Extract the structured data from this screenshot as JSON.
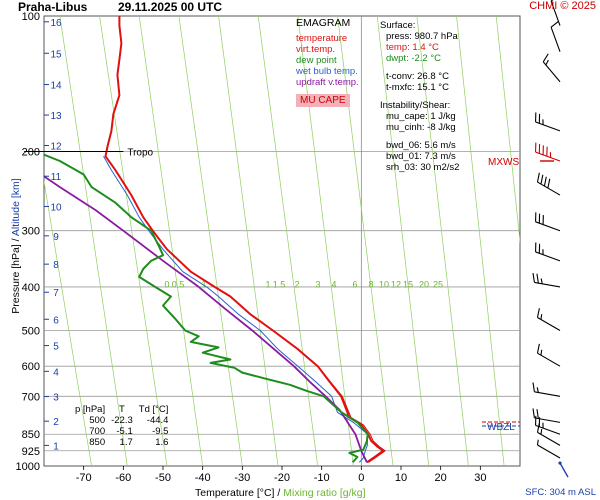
{
  "header": {
    "station": "Praha-Libus",
    "datetime": "29.11.2025 00 UTC",
    "credit": "CHMI © 2025"
  },
  "legend": {
    "title": "EMAGRAM",
    "items": [
      {
        "label": "temperature",
        "color": "#e01010"
      },
      {
        "label": "virt.temp.",
        "color": "#e01010"
      },
      {
        "label": "dew point",
        "color": "#1e8c1e"
      },
      {
        "label": "wet bulb temp.",
        "color": "#2b5fd0"
      },
      {
        "label": "updraft v.temp.",
        "color": "#8a1aa0"
      }
    ],
    "badge": "MU CAPE"
  },
  "info": {
    "surface_title": "Surface:",
    "press": "press: 980.7 hPa",
    "temp": "temp: 1.4 °C",
    "dwpt": "dwpt: -2.2 °C",
    "tconv": "t-conv: 26.8 °C",
    "tmxfc": "t-mxfc: 15.1 °C",
    "instability_title": "Instability/Shear:",
    "mu_cape": "mu_cape: 1 J/kg",
    "mu_cinh": "mu_cinh: -8 J/kg",
    "bwd_06": "bwd_06: 5.6 m/s",
    "bwd_01": "bwd_01: 7.3 m/s",
    "srh_03": "srh_03: 30 m2/s2"
  },
  "level_table": {
    "headers": [
      "p [hPa]",
      "T",
      "Td [°C]"
    ],
    "rows": [
      [
        "500",
        "-22.3",
        "-44.4"
      ],
      [
        "700",
        "-5.1",
        "-9.5"
      ],
      [
        "850",
        "1.7",
        "1.6"
      ]
    ]
  },
  "axes": {
    "xlabel_a": "Temperature [°C]",
    "xlabel_sep": " / ",
    "xlabel_b": "Mixing ratio [g/kg]",
    "ylabel_a": "Pressure [hPa]",
    "ylabel_sep": " / ",
    "ylabel_b": "Altitude [km]",
    "sfc": "SFC: 304 m ASL"
  },
  "annotations": {
    "tropo": "Tropo",
    "mxws": "MXWS",
    "wbzl": "WBZL"
  },
  "chart_data": {
    "type": "line",
    "title": "EMAGRAM",
    "xlabel": "Temperature [°C] / Mixing ratio [g/kg]",
    "ylabel": "Pressure [hPa] / Altitude [km]",
    "xlim": [
      -80,
      40
    ],
    "ylim_hpa": [
      1000,
      100
    ],
    "log_y": true,
    "grid": true,
    "x_ticks": [
      -70,
      -60,
      -50,
      -40,
      -30,
      -20,
      -10,
      0,
      10,
      20,
      30
    ],
    "pressure_ticks": [
      100,
      200,
      300,
      400,
      500,
      600,
      700,
      850,
      925,
      1000
    ],
    "altitude_ticks_km": [
      {
        "km": "1",
        "p": 900
      },
      {
        "km": "2",
        "p": 795
      },
      {
        "km": "3",
        "p": 701
      },
      {
        "km": "4",
        "p": 616
      },
      {
        "km": "5",
        "p": 540
      },
      {
        "km": "6",
        "p": 472
      },
      {
        "km": "7",
        "p": 411
      },
      {
        "km": "8",
        "p": 356
      },
      {
        "km": "9",
        "p": 308
      },
      {
        "km": "10",
        "p": 265
      },
      {
        "km": "11",
        "p": 227
      },
      {
        "km": "12",
        "p": 194
      },
      {
        "km": "13",
        "p": 166
      },
      {
        "km": "14",
        "p": 142
      },
      {
        "km": "15",
        "p": 121
      },
      {
        "km": "16",
        "p": 103
      }
    ],
    "mixing_ratio_labels": [
      "0",
      "0.5",
      "1",
      "1.5",
      "2",
      "3",
      "4",
      "6",
      "8",
      "10",
      "12",
      "15",
      "20",
      "25"
    ],
    "mixing_ratio_lines": [
      {
        "label": "0",
        "x_at_1000": -68,
        "x_at_100": -87
      },
      {
        "label": "0.5",
        "x_at_1000": -59,
        "x_at_100": -76
      },
      {
        "label": "1",
        "x_at_1000": -49,
        "x_at_100": -66
      },
      {
        "label": "1.5",
        "x_at_1000": -40,
        "x_at_100": -56
      },
      {
        "label": "2",
        "x_at_1000": -30,
        "x_at_100": -46
      },
      {
        "label": "3",
        "x_at_1000": -21,
        "x_at_100": -36
      },
      {
        "label": "4",
        "x_at_1000": -11,
        "x_at_100": -26
      },
      {
        "label": "6",
        "x_at_1000": -2,
        "x_at_100": -16
      },
      {
        "label": "8",
        "x_at_1000": 8,
        "x_at_100": -6
      },
      {
        "label": "10",
        "x_at_1000": 17,
        "x_at_100": 4
      },
      {
        "label": "12",
        "x_at_1000": 27,
        "x_at_100": 14
      },
      {
        "label": "15",
        "x_at_1000": 36,
        "x_at_100": 24
      },
      {
        "label": "20",
        "x_at_1000": 46,
        "x_at_100": 34
      },
      {
        "label": "25",
        "x_at_1000": 55,
        "x_at_100": 44
      }
    ],
    "tropopause_hpa": 200,
    "series": [
      {
        "name": "temperature",
        "color": "#e01010",
        "points": [
          [
            1.4,
            981
          ],
          [
            3,
            960
          ],
          [
            5.5,
            925
          ],
          [
            4,
            905
          ],
          [
            2.5,
            880
          ],
          [
            1.7,
            850
          ],
          [
            0,
            810
          ],
          [
            -3,
            780
          ],
          [
            -5.1,
            700
          ],
          [
            -8,
            650
          ],
          [
            -11,
            600
          ],
          [
            -16,
            550
          ],
          [
            -22.3,
            500
          ],
          [
            -28,
            460
          ],
          [
            -33,
            420
          ],
          [
            -37,
            400
          ],
          [
            -43,
            370
          ],
          [
            -49,
            330
          ],
          [
            -52,
            305
          ],
          [
            -55,
            280
          ],
          [
            -58,
            250
          ],
          [
            -62,
            220
          ],
          [
            -64.5,
            205
          ],
          [
            -64,
            195
          ],
          [
            -63,
            180
          ],
          [
            -62.5,
            165
          ],
          [
            -61,
            150
          ],
          [
            -61.5,
            135
          ],
          [
            -61,
            125
          ],
          [
            -60.5,
            115
          ],
          [
            -61,
            105
          ],
          [
            -61,
            100
          ]
        ]
      },
      {
        "name": "virt.temp.",
        "color": "#e01010",
        "points": [
          [
            1.8,
            981
          ],
          [
            3.5,
            960
          ],
          [
            6,
            925
          ],
          [
            4.5,
            905
          ],
          [
            3,
            880
          ],
          [
            2.2,
            850
          ],
          [
            0.5,
            810
          ],
          [
            -2.6,
            780
          ],
          [
            -4.8,
            700
          ],
          [
            -7.8,
            650
          ],
          [
            -10.9,
            600
          ],
          [
            -15.9,
            550
          ],
          [
            -22.2,
            500
          ],
          [
            -28,
            460
          ],
          [
            -33,
            420
          ],
          [
            -37,
            400
          ],
          [
            -43,
            370
          ],
          [
            -49,
            330
          ],
          [
            -52,
            305
          ],
          [
            -55,
            280
          ],
          [
            -58,
            250
          ],
          [
            -62,
            220
          ],
          [
            -64.5,
            205
          ],
          [
            -64,
            195
          ],
          [
            -63,
            180
          ],
          [
            -62.5,
            165
          ],
          [
            -61,
            150
          ],
          [
            -61.5,
            135
          ],
          [
            -61,
            125
          ],
          [
            -60.5,
            115
          ],
          [
            -61,
            105
          ],
          [
            -61,
            100
          ]
        ]
      },
      {
        "name": "dew point",
        "color": "#1e8c1e",
        "points": [
          [
            -2.2,
            981
          ],
          [
            -1,
            955
          ],
          [
            -3,
            935
          ],
          [
            0.5,
            920
          ],
          [
            1.4,
            880
          ],
          [
            1.6,
            850
          ],
          [
            -1,
            800
          ],
          [
            -5,
            760
          ],
          [
            -9.5,
            700
          ],
          [
            -14,
            680
          ],
          [
            -18,
            660
          ],
          [
            -24,
            640
          ],
          [
            -30,
            620
          ],
          [
            -32,
            605
          ],
          [
            -38,
            590
          ],
          [
            -33,
            580
          ],
          [
            -40,
            560
          ],
          [
            -36,
            545
          ],
          [
            -43,
            530
          ],
          [
            -41,
            515
          ],
          [
            -44.4,
            500
          ],
          [
            -47,
            470
          ],
          [
            -50,
            440
          ],
          [
            -48,
            420
          ],
          [
            -52,
            400
          ],
          [
            -56,
            380
          ],
          [
            -55,
            365
          ],
          [
            -53,
            350
          ],
          [
            -50,
            340
          ],
          [
            -51,
            325
          ],
          [
            -53,
            300
          ],
          [
            -58,
            280
          ],
          [
            -62,
            260
          ],
          [
            -68,
            240
          ],
          [
            -70,
            225
          ],
          [
            -76,
            210
          ],
          [
            -82,
            200
          ],
          [
            -84,
            190
          ]
        ]
      },
      {
        "name": "wet bulb temp.",
        "color": "#2b5fd0",
        "points": [
          [
            -0.5,
            981
          ],
          [
            0.5,
            960
          ],
          [
            1,
            925
          ],
          [
            1.5,
            900
          ],
          [
            1.6,
            850
          ],
          [
            -2,
            800
          ],
          [
            -6,
            760
          ],
          [
            -7.5,
            700
          ],
          [
            -11.5,
            650
          ],
          [
            -16,
            600
          ],
          [
            -21,
            550
          ],
          [
            -25.5,
            500
          ],
          [
            -31,
            460
          ],
          [
            -36,
            420
          ],
          [
            -39,
            400
          ],
          [
            -45,
            370
          ],
          [
            -50,
            330
          ],
          [
            -53,
            305
          ],
          [
            -56,
            280
          ],
          [
            -59,
            250
          ],
          [
            -63,
            220
          ],
          [
            -65,
            205
          ]
        ]
      },
      {
        "name": "updraft v.temp.",
        "color": "#8a1aa0",
        "points": [
          [
            1.4,
            981
          ],
          [
            0,
            925
          ],
          [
            -1.5,
            850
          ],
          [
            -5.5,
            750
          ],
          [
            -9,
            700
          ],
          [
            -13,
            650
          ],
          [
            -17,
            600
          ],
          [
            -22,
            550
          ],
          [
            -27.5,
            500
          ],
          [
            -34,
            450
          ],
          [
            -41,
            400
          ],
          [
            -50,
            350
          ],
          [
            -60,
            300
          ],
          [
            -67,
            270
          ],
          [
            -76,
            240
          ],
          [
            -84,
            215
          ],
          [
            -90,
            200
          ]
        ]
      }
    ],
    "wind_barbs": [
      {
        "p": 960,
        "dir": 300,
        "kt": 5
      },
      {
        "p": 900,
        "dir": 300,
        "kt": 15
      },
      {
        "p": 850,
        "dir": 290,
        "kt": 25
      },
      {
        "p": 800,
        "dir": 280,
        "kt": 20
      },
      {
        "p": 700,
        "dir": 280,
        "kt": 15
      },
      {
        "p": 600,
        "dir": 300,
        "kt": 15
      },
      {
        "p": 500,
        "dir": 300,
        "kt": 15
      },
      {
        "p": 400,
        "dir": 280,
        "kt": 25
      },
      {
        "p": 350,
        "dir": 290,
        "kt": 25
      },
      {
        "p": 300,
        "dir": 290,
        "kt": 30
      },
      {
        "p": 250,
        "dir": 300,
        "kt": 40
      },
      {
        "p": 210,
        "dir": 290,
        "kt": 45
      },
      {
        "p": 180,
        "dir": 290,
        "kt": 25
      },
      {
        "p": 140,
        "dir": 320,
        "kt": 15
      },
      {
        "p": 120,
        "dir": 340,
        "kt": 10
      },
      {
        "p": 105,
        "dir": 340,
        "kt": 10
      }
    ],
    "mxws_hpa": 210,
    "wbzl_hpa": 815
  }
}
